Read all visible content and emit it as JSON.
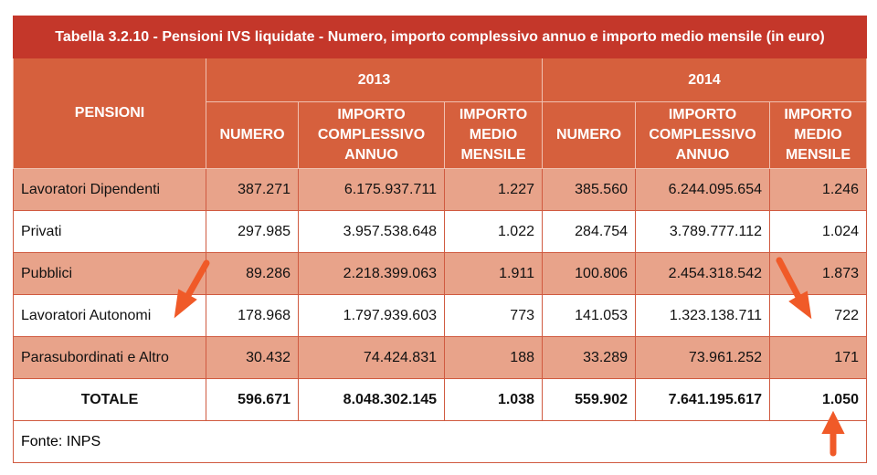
{
  "table": {
    "title": "Tabella 3.2.10 - Pensioni IVS liquidate - Numero, importo complessivo annuo e importo medio mensile (in euro)",
    "row_header": "PENSIONI",
    "years": [
      "2013",
      "2014"
    ],
    "columns": [
      "NUMERO",
      "IMPORTO COMPLESSIVO ANNUO",
      "IMPORTO MEDIO MENSILE",
      "NUMERO",
      "IMPORTO COMPLESSIVO ANNUO",
      "IMPORTO MEDIO MENSILE"
    ],
    "rows": [
      [
        "Lavoratori Dipendenti",
        "387.271",
        "6.175.937.711",
        "1.227",
        "385.560",
        "6.244.095.654",
        "1.246"
      ],
      [
        "Privati",
        "297.985",
        "3.957.538.648",
        "1.022",
        "284.754",
        "3.789.777.112",
        "1.024"
      ],
      [
        "Pubblici",
        "89.286",
        "2.218.399.063",
        "1.911",
        "100.806",
        "2.454.318.542",
        "1.873"
      ],
      [
        "Lavoratori Autonomi",
        "178.968",
        "1.797.939.603",
        "773",
        "141.053",
        "1.323.138.711",
        "722"
      ],
      [
        "Parasubordinati e Altro",
        "30.432",
        "74.424.831",
        "188",
        "33.289",
        "73.961.252",
        "171"
      ]
    ],
    "total": [
      "TOTALE",
      "596.671",
      "8.048.302.145",
      "1.038",
      "559.902",
      "7.641.195.617",
      "1.050"
    ],
    "source": "Fonte: INPS"
  }
}
